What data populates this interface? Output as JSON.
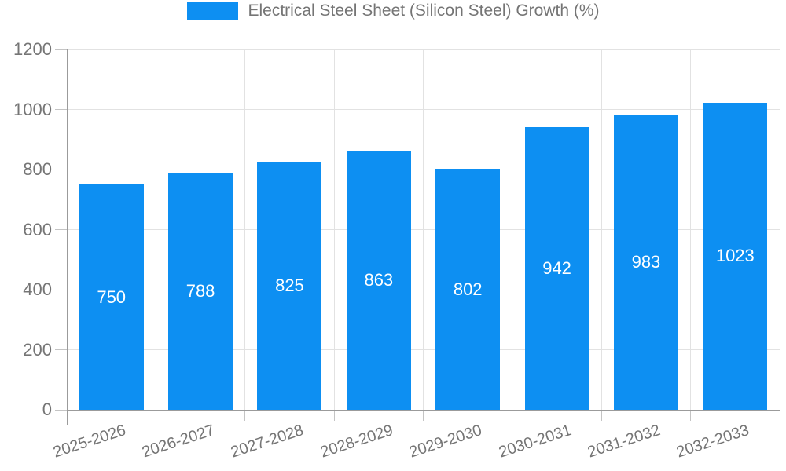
{
  "chart_data": {
    "type": "bar",
    "title": "Electrical Steel Sheet (Silicon Steel) Growth (%)",
    "categories": [
      "2025-2026",
      "2026-2027",
      "2027-2028",
      "2028-2029",
      "2029-2030",
      "2030-2031",
      "2031-2032",
      "2032-2033"
    ],
    "values": [
      750,
      788,
      825,
      863,
      802,
      942,
      983,
      1023
    ],
    "xlabel": "",
    "ylabel": "",
    "ylim": [
      0,
      1200
    ],
    "yticks": [
      0,
      200,
      400,
      600,
      800,
      1000,
      1200
    ],
    "grid": true,
    "legend_position": "top",
    "colors": {
      "bar": "#0d8ff2",
      "value_label": "#ffffff",
      "axis_text": "#757575",
      "grid_line": "#e2e2e2",
      "axis_line": "#9b9b9b",
      "tick_mark": "#c4c4c4"
    }
  }
}
